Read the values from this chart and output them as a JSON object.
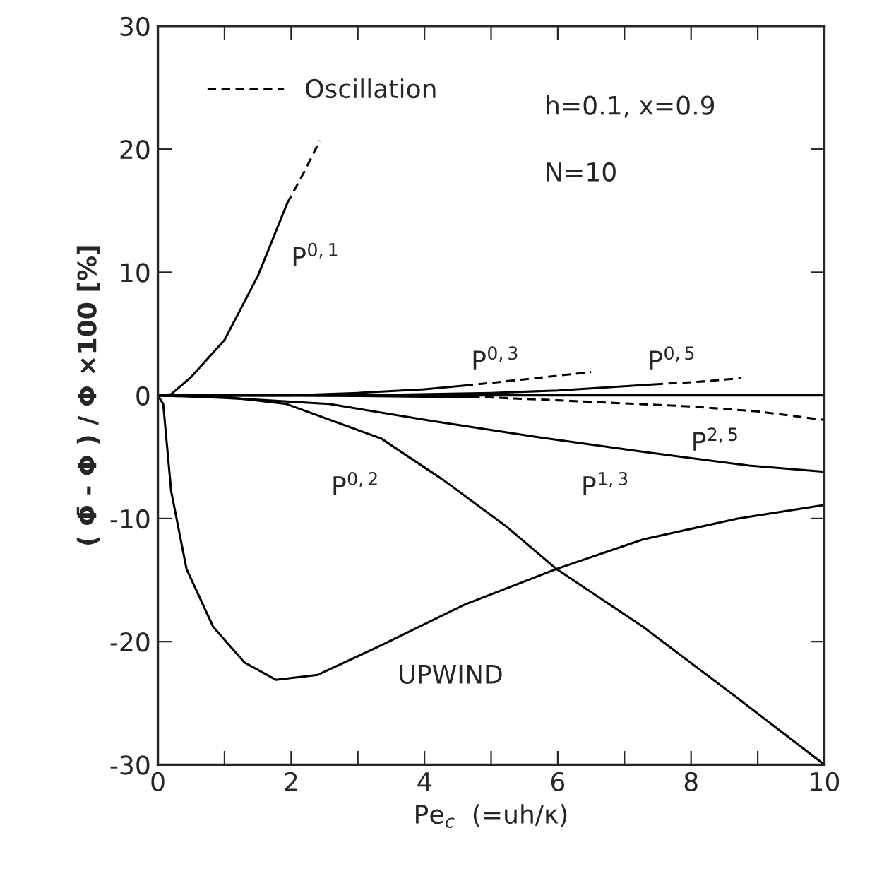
{
  "chart_data": {
    "type": "line",
    "xlabel": "Pe$_{c}$  (=uh/κ)",
    "ylabel": "( Φ̄ - Φ ) / Φ ×100 [%]",
    "xlim": [
      0,
      10
    ],
    "ylim": [
      -30,
      30
    ],
    "xticks": [
      0,
      {
        "value": 1,
        "label": null
      },
      2,
      {
        "value": 3,
        "label": null
      },
      4,
      {
        "value": 5,
        "label": null
      },
      6,
      {
        "value": 7,
        "label": null
      },
      8,
      {
        "value": 9,
        "label": null
      },
      10
    ],
    "yticks": [
      -30,
      -20,
      -10,
      0,
      10,
      20,
      30
    ],
    "grid": false,
    "legend": "top left",
    "marker": "none",
    "series": [
      {
        "color": "#000000",
        "line_style": "solid",
        "x": [
          0,
          0.2,
          0.5,
          1.0,
          1.5,
          1.94
        ],
        "values": [
          0,
          0.1,
          1.5,
          4.5,
          9.7,
          15.6
        ]
      },
      {
        "name": "Oscillation",
        "color": "#000000",
        "line_style": "dashed",
        "x": [
          1.94,
          2.2,
          2.43
        ],
        "values": [
          15.6,
          18.2,
          20.7
        ]
      },
      {
        "color": "#000000",
        "line_style": "solid",
        "x": [
          0,
          2,
          3,
          4,
          4.6
        ],
        "values": [
          0,
          0.0,
          0.2,
          0.5,
          0.8
        ]
      },
      {
        "color": "#000000",
        "line_style": "dashed",
        "x": [
          4.6,
          5.5,
          6.5
        ],
        "values": [
          0.8,
          1.3,
          1.9
        ]
      },
      {
        "color": "#000000",
        "line_style": "solid",
        "x": [
          0,
          3,
          5,
          6,
          7.45
        ],
        "values": [
          0,
          0.0,
          0.2,
          0.4,
          0.9
        ]
      },
      {
        "color": "#000000",
        "line_style": "dashed",
        "x": [
          7.45,
          8.1,
          8.75
        ],
        "values": [
          0.9,
          1.1,
          1.4
        ]
      },
      {
        "color": "#000000",
        "line_style": "solid",
        "x": [
          0,
          10
        ],
        "values": [
          0,
          0
        ]
      },
      {
        "color": "#000000",
        "line_style": "solid",
        "x": [
          0,
          2,
          4,
          4.7
        ],
        "values": [
          0,
          0.0,
          -0.1,
          -0.1
        ]
      },
      {
        "color": "#000000",
        "line_style": "dashed",
        "x": [
          4.7,
          6,
          8,
          9,
          10
        ],
        "values": [
          -0.1,
          -0.4,
          -0.9,
          -1.3,
          -2.0
        ]
      },
      {
        "color": "#000000",
        "line_style": "solid",
        "x": [
          0,
          1,
          2.57,
          4.14,
          5.72,
          7.3,
          8.87,
          10
        ],
        "values": [
          0,
          -0.2,
          -0.7,
          -2.1,
          -3.4,
          -4.6,
          -5.7,
          -6.2
        ]
      },
      {
        "color": "#000000",
        "line_style": "solid",
        "x": [
          0,
          1,
          1.93,
          3.35,
          4.29,
          5.24,
          5.98,
          7.28,
          8.7,
          10
        ],
        "values": [
          0,
          -0.1,
          -0.7,
          -3.5,
          -6.9,
          -10.7,
          -14.1,
          -18.8,
          -24.6,
          -30
        ]
      },
      {
        "color": "#000000",
        "line_style": "solid",
        "x": [
          0,
          0.08,
          0.2,
          0.43,
          0.83,
          1.3,
          1.77,
          2.4,
          3.35,
          4.6,
          5.98,
          7.28,
          8.7,
          10
        ],
        "values": [
          0,
          -0.7,
          -7.8,
          -14.1,
          -18.8,
          -21.7,
          -23.1,
          -22.7,
          -20.3,
          -17,
          -14.1,
          -11.7,
          -10,
          -8.9
        ]
      }
    ],
    "annotations": [
      "P$^{0,1}$",
      "P$^{0,3}$",
      "P$^{0,5}$",
      "P$^{2,5}$",
      "P$^{0,2}$",
      "P$^{1,3}$",
      "UPWIND",
      "h=0.1, x=0.9",
      "N=10"
    ]
  }
}
